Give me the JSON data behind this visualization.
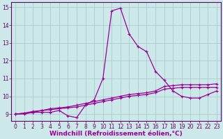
{
  "bg_color": "#cce8e8",
  "line_color": "#990099",
  "grid_color": "#aacccc",
  "xlim": [
    -0.5,
    23.5
  ],
  "ylim": [
    8.6,
    15.3
  ],
  "yticks": [
    9,
    10,
    11,
    12,
    13,
    14,
    15
  ],
  "xticks": [
    0,
    1,
    2,
    3,
    4,
    5,
    6,
    7,
    8,
    9,
    10,
    11,
    12,
    13,
    14,
    15,
    16,
    17,
    18,
    19,
    20,
    21,
    22,
    23
  ],
  "xlabel": "Windchill (Refroidissement éolien,°C)",
  "line1_x": [
    0,
    1,
    2,
    3,
    4,
    5,
    6,
    7,
    8,
    9,
    10,
    11,
    12,
    13,
    14,
    15,
    16,
    17,
    18,
    19,
    20,
    21,
    22,
    23
  ],
  "line1_y": [
    9.0,
    9.0,
    9.1,
    9.1,
    9.1,
    9.2,
    8.9,
    8.8,
    9.5,
    9.8,
    11.0,
    14.8,
    14.95,
    13.5,
    12.8,
    12.5,
    11.4,
    10.9,
    10.3,
    10.0,
    9.9,
    9.9,
    10.1,
    10.3
  ],
  "line2_x": [
    0,
    1,
    2,
    3,
    4,
    5,
    6,
    7,
    8,
    9,
    10,
    11,
    12,
    13,
    14,
    15,
    16,
    17,
    18,
    19,
    20,
    21,
    22,
    23
  ],
  "line2_y": [
    9.0,
    9.05,
    9.1,
    9.2,
    9.25,
    9.3,
    9.35,
    9.4,
    9.5,
    9.6,
    9.7,
    9.8,
    9.9,
    10.0,
    10.05,
    10.1,
    10.2,
    10.4,
    10.45,
    10.5,
    10.5,
    10.5,
    10.5,
    10.5
  ],
  "line3_x": [
    0,
    1,
    2,
    3,
    4,
    5,
    6,
    7,
    8,
    9,
    10,
    11,
    12,
    13,
    14,
    15,
    16,
    17,
    18,
    19,
    20,
    21,
    22,
    23
  ],
  "line3_y": [
    9.0,
    9.05,
    9.15,
    9.2,
    9.3,
    9.35,
    9.4,
    9.5,
    9.6,
    9.7,
    9.8,
    9.9,
    10.0,
    10.1,
    10.15,
    10.2,
    10.3,
    10.55,
    10.6,
    10.65,
    10.65,
    10.65,
    10.65,
    10.7
  ],
  "tick_fontsize": 5.5,
  "xlabel_fontsize": 6.5
}
